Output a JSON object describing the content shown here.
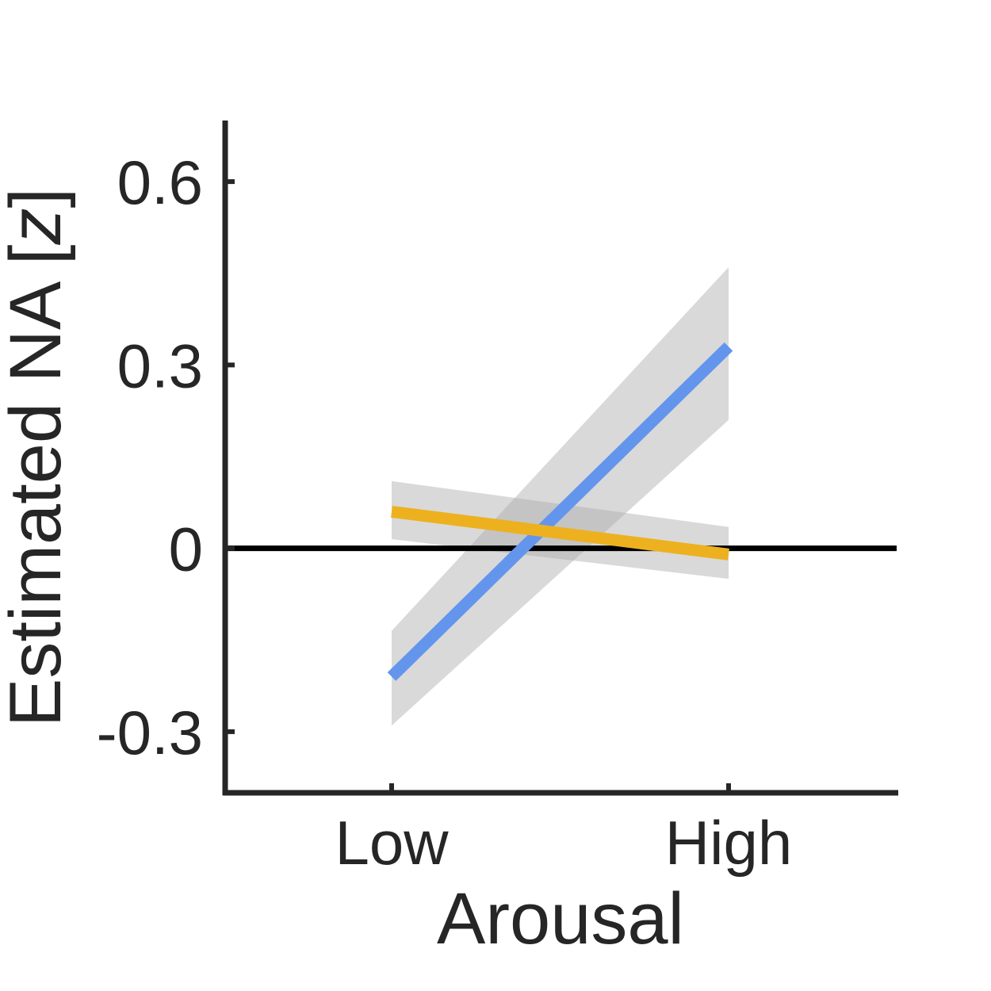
{
  "chart_data": {
    "type": "line",
    "xlabel": "Arousal",
    "ylabel_prefix": "Estimated NA [",
    "ylabel_var": "z",
    "ylabel_suffix": "]",
    "categories": [
      "Low",
      "High"
    ],
    "ylim": [
      -0.4,
      0.7
    ],
    "yticks": [
      -0.3,
      0,
      0.3,
      0.6
    ],
    "ytick_labels": [
      "-0.3",
      "0",
      "0.3",
      "0.6"
    ],
    "zero_line": true,
    "series": [
      {
        "color": "#6495ED",
        "values": [
          -0.21,
          0.33
        ],
        "ci_lower": [
          -0.29,
          0.21
        ],
        "ci_upper": [
          -0.135,
          0.46
        ]
      },
      {
        "color": "#EDB120",
        "values": [
          0.06,
          -0.01
        ],
        "ci_lower": [
          0.015,
          -0.05
        ],
        "ci_upper": [
          0.11,
          0.035
        ]
      }
    ],
    "ci_color": "#aaaaaa"
  }
}
